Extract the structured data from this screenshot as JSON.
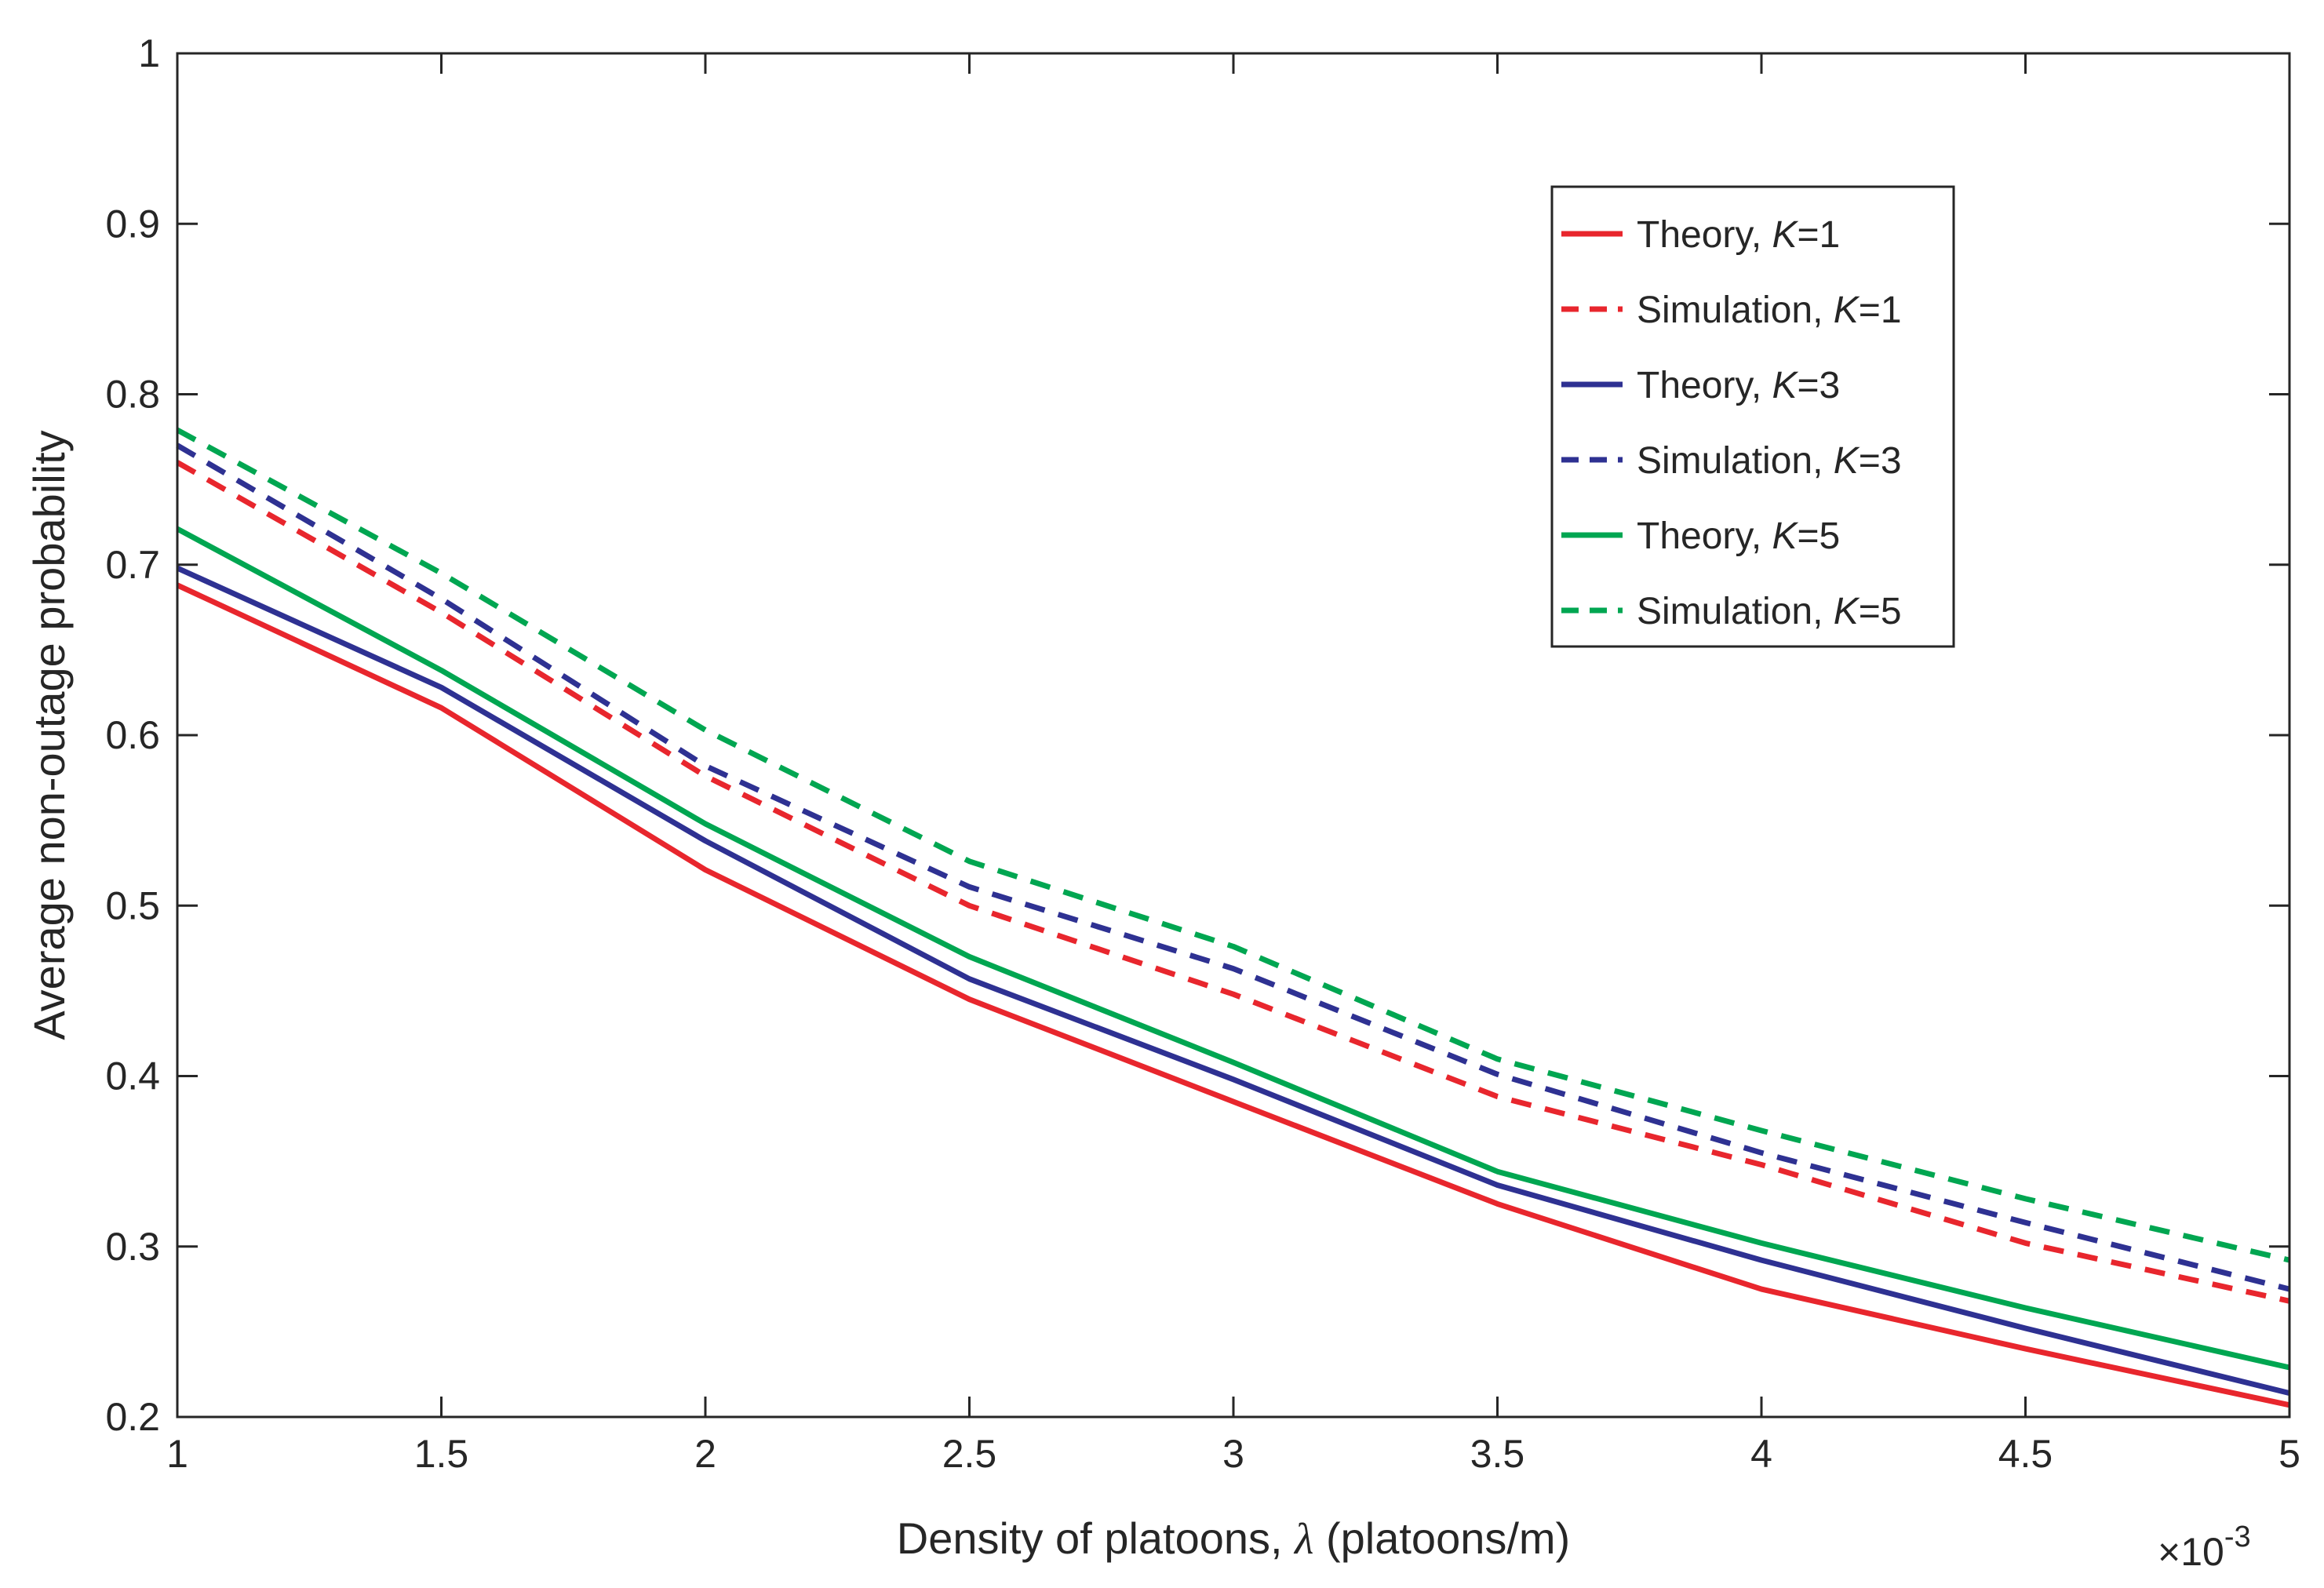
{
  "chart_data": {
    "type": "line",
    "title": "",
    "xlabel_prefix": "Density of platoons, ",
    "xlabel_symbol": "λ",
    "xlabel_suffix": " (platoons/m)",
    "ylabel": "Average non-outage probability",
    "x_multiplier": {
      "base": "×10",
      "exponent": "-3"
    },
    "xlim": [
      1,
      5
    ],
    "ylim": [
      0.2,
      1
    ],
    "xticks": [
      1,
      1.5,
      2,
      2.5,
      3,
      3.5,
      4,
      4.5,
      5
    ],
    "xtick_labels": [
      "1",
      "1.5",
      "2",
      "2.5",
      "3",
      "3.5",
      "4",
      "4.5",
      "5"
    ],
    "yticks": [
      0.2,
      0.3,
      0.4,
      0.5,
      0.6,
      0.7,
      0.8,
      0.9,
      1
    ],
    "ytick_labels": [
      "0.2",
      "0.3",
      "0.4",
      "0.5",
      "0.6",
      "0.7",
      "0.8",
      "0.9",
      "1"
    ],
    "grid": false,
    "legend_position": "top-right",
    "x": [
      1,
      1.5,
      2,
      2.5,
      3,
      3.5,
      4,
      4.5,
      5
    ],
    "series": [
      {
        "name": "Theory, K=1",
        "label_prefix": "Theory, ",
        "label_var": "K",
        "label_suffix": "=1",
        "color": "#e8262d",
        "dash": "solid",
        "values": [
          0.688,
          0.616,
          0.521,
          0.445,
          0.385,
          0.325,
          0.275,
          0.24,
          0.207
        ]
      },
      {
        "name": "Simulation, K=1",
        "label_prefix": "Simulation, ",
        "label_var": "K",
        "label_suffix": "=1",
        "color": "#e8262d",
        "dash": "dashed",
        "values": [
          0.76,
          0.672,
          0.576,
          0.5,
          0.448,
          0.388,
          0.348,
          0.302,
          0.268
        ]
      },
      {
        "name": "Theory, K=3",
        "label_prefix": "Theory, ",
        "label_var": "K",
        "label_suffix": "=3",
        "color": "#2e3192",
        "dash": "solid",
        "values": [
          0.698,
          0.628,
          0.538,
          0.457,
          0.398,
          0.336,
          0.292,
          0.252,
          0.214
        ]
      },
      {
        "name": "Simulation, K=3",
        "label_prefix": "Simulation, ",
        "label_var": "K",
        "label_suffix": "=3",
        "color": "#2e3192",
        "dash": "dashed",
        "values": [
          0.77,
          0.68,
          0.582,
          0.511,
          0.463,
          0.401,
          0.355,
          0.314,
          0.275
        ]
      },
      {
        "name": "Theory, K=5",
        "label_prefix": "Theory, ",
        "label_var": "K",
        "label_suffix": "=5",
        "color": "#00a651",
        "dash": "solid",
        "values": [
          0.721,
          0.638,
          0.548,
          0.47,
          0.408,
          0.344,
          0.302,
          0.264,
          0.229
        ]
      },
      {
        "name": "Simulation, K=5",
        "label_prefix": "Simulation, ",
        "label_var": "K",
        "label_suffix": "=5",
        "color": "#00a651",
        "dash": "dashed",
        "values": [
          0.779,
          0.695,
          0.603,
          0.526,
          0.476,
          0.41,
          0.368,
          0.328,
          0.292
        ]
      }
    ]
  }
}
